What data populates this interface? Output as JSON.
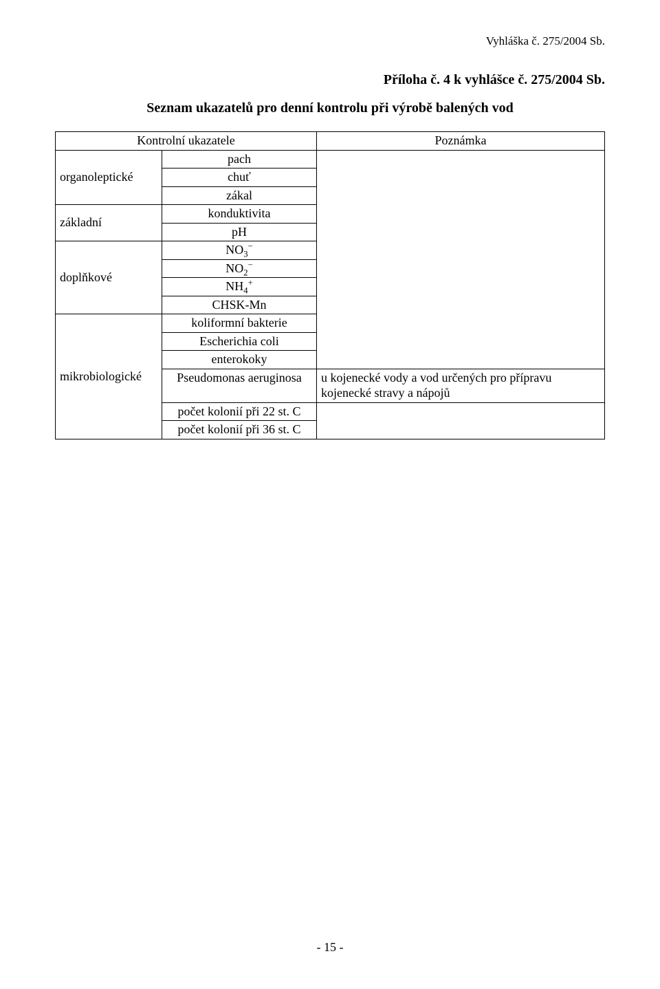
{
  "header_right": "Vyhláška č. 275/2004 Sb.",
  "attachment_heading": "Příloha č. 4 k vyhlášce č. 275/2004 Sb.",
  "doc_title": "Seznam ukazatelů pro denní kontrolu při výrobě balených vod",
  "col_headers": {
    "indicators": "Kontrolní ukazatele",
    "note": "Poznámka"
  },
  "groups": [
    {
      "category": "organoleptické",
      "items": [
        {
          "label_html": "pach",
          "note_html": ""
        },
        {
          "label_html": "chuť",
          "note_html": ""
        },
        {
          "label_html": "zákal",
          "note_html": ""
        }
      ]
    },
    {
      "category": "základní",
      "items": [
        {
          "label_html": "konduktivita",
          "note_html": ""
        },
        {
          "label_html": "pH",
          "note_html": ""
        }
      ]
    },
    {
      "category": "doplňkové",
      "items": [
        {
          "label_html": "NO<sub>3</sub><sup>&minus;</sup>",
          "note_html": ""
        },
        {
          "label_html": "NO<sub>2</sub><sup>&minus;</sup>",
          "note_html": ""
        },
        {
          "label_html": "NH<sub>4</sub><sup>+</sup>",
          "note_html": ""
        },
        {
          "label_html": "CHSK-Mn",
          "note_html": ""
        }
      ]
    },
    {
      "category": "mikrobiologické",
      "items": [
        {
          "label_html": "koliformní bakterie",
          "note_html": ""
        },
        {
          "label_html": "Escherichia coli",
          "note_html": ""
        },
        {
          "label_html": "enterokoky",
          "note_html": ""
        },
        {
          "label_html": "Pseudomonas aeruginosa",
          "note_html": "u kojenecké vody a vod určených pro přípravu kojenecké stravy a nápojů"
        },
        {
          "label_html": "počet kolonií při 22 st. C",
          "note_html": ""
        },
        {
          "label_html": "počet kolonií při 36 st. C",
          "note_html": ""
        }
      ]
    }
  ],
  "page_number": "- 15 -"
}
